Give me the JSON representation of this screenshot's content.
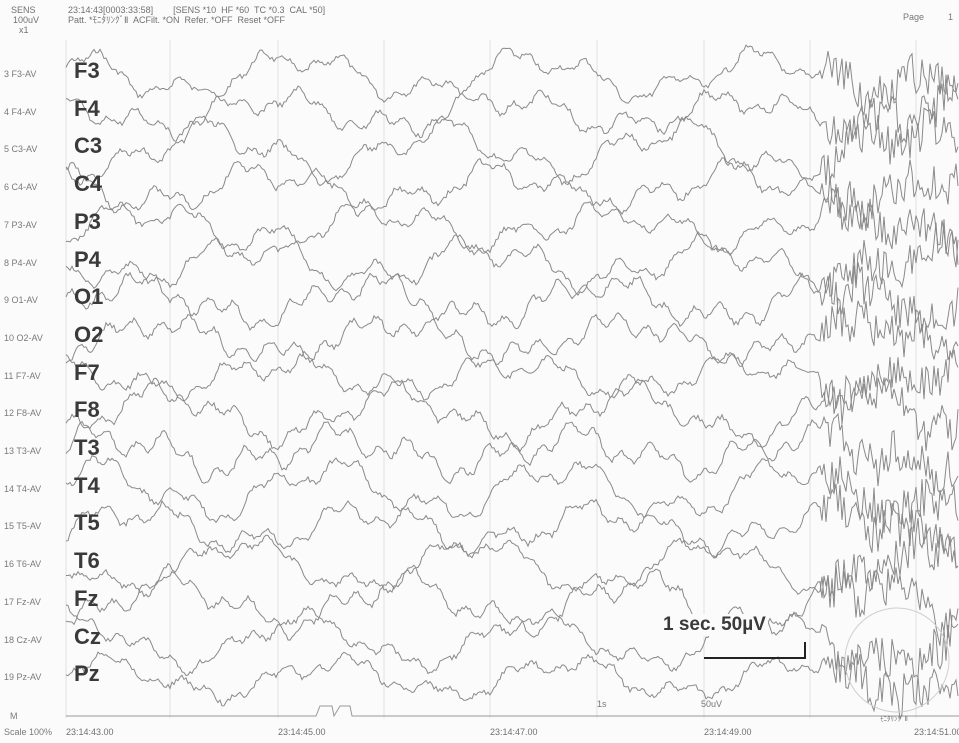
{
  "header": {
    "sens_title": "SENS",
    "sens_value": "100uV",
    "sens_mult": "x1",
    "line1": "23:14:43[0003:33:58]        [SENS *10  HF *60  TC *0.3  CAL *50]",
    "line2": "Patt. *ﾓﾆﾀﾘﾝｸﾞⅡ  ACFilt. *ON  Refer. *OFF  Reset *OFF",
    "page_label": "Page",
    "page_number": "1"
  },
  "channels": [
    {
      "label": "3  F3-AV",
      "name": "F3"
    },
    {
      "label": "4  F4-AV",
      "name": "F4"
    },
    {
      "label": "5  C3-AV",
      "name": "C3"
    },
    {
      "label": "6  C4-AV",
      "name": "C4"
    },
    {
      "label": "7  P3-AV",
      "name": "P3"
    },
    {
      "label": "8  P4-AV",
      "name": "P4"
    },
    {
      "label": "9  O1-AV",
      "name": "O1"
    },
    {
      "label": "10  O2-AV",
      "name": "O2"
    },
    {
      "label": "11  F7-AV",
      "name": "F7"
    },
    {
      "label": "12  F8-AV",
      "name": "F8"
    },
    {
      "label": "13  T3-AV",
      "name": "T3"
    },
    {
      "label": "14  T4-AV",
      "name": "T4"
    },
    {
      "label": "15  T5-AV",
      "name": "T5"
    },
    {
      "label": "16  T6-AV",
      "name": "T6"
    },
    {
      "label": "17  Fz-AV",
      "name": "Fz"
    },
    {
      "label": "18  Cz-AV",
      "name": "Cz"
    },
    {
      "label": "19  Pz-AV",
      "name": "Pz"
    }
  ],
  "marker_label": "M",
  "scale_label": "Scale 100%",
  "times": [
    "23:14:43.00",
    "23:14:45.00",
    "23:14:47.00",
    "23:14:49.00",
    "23:14:51.00"
  ],
  "scale_bar": "1 sec. 50µV",
  "marks": {
    "one_sec": "1s",
    "fifty_uv": "50uV",
    "montage": "ﾓﾆﾀﾘﾝｸﾞⅡ"
  },
  "colors": {
    "trace": "#8a8a8a",
    "background": "#fbfbfb",
    "label": "#3a3a3a"
  }
}
